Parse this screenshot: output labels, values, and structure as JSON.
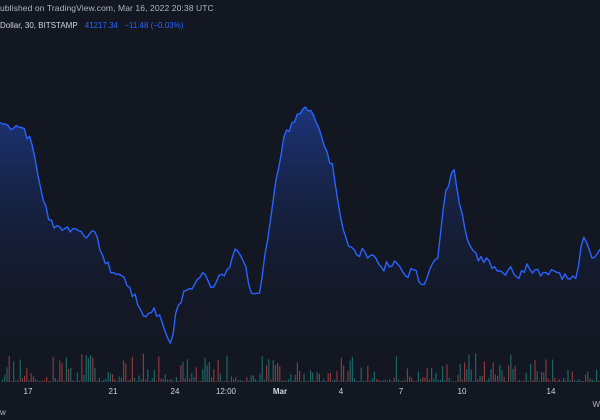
{
  "header": {
    "published_text": "ublished on TradingView.com, Mar 16, 2022 20:38 UTC"
  },
  "legend": {
    "symbol_text": "Dollar, 30, BITSTAMP",
    "last_value": "41217.34",
    "change": "−11.48 (−0.03%)",
    "value_color": "#2962ff"
  },
  "footer": {
    "bottom_left_text": "w",
    "bottom_right_text": "W"
  },
  "colors": {
    "background": "#131722",
    "line": "#2962ff",
    "area_top": "#1e3a8a",
    "volume_up": "#26a69a",
    "volume_down": "#ef5350",
    "axis_text": "#d1d4dc"
  },
  "chart_data": {
    "type": "area",
    "x_tick_labels": [
      "17",
      "21",
      "24",
      "12:00",
      "Mar",
      "4",
      "7",
      "10",
      "14"
    ],
    "bold_tick_label": "Mar",
    "series": [
      {
        "values": [
          0.78,
          0.77,
          0.77,
          0.76,
          0.7,
          0.56,
          0.45,
          0.43,
          0.42,
          0.42,
          0.41,
          0.4,
          0.39,
          0.3,
          0.27,
          0.26,
          0.22,
          0.16,
          0.12,
          0.15,
          0.1,
          0.03,
          0.16,
          0.21,
          0.23,
          0.27,
          0.22,
          0.26,
          0.28,
          0.35,
          0.31,
          0.2,
          0.2,
          0.38,
          0.58,
          0.73,
          0.78,
          0.81,
          0.82,
          0.78,
          0.7,
          0.64,
          0.46,
          0.36,
          0.33,
          0.34,
          0.33,
          0.29,
          0.29,
          0.3,
          0.26,
          0.28,
          0.23,
          0.28,
          0.32,
          0.55,
          0.62,
          0.47,
          0.36,
          0.31,
          0.32,
          0.29,
          0.27,
          0.29,
          0.25,
          0.3,
          0.28,
          0.27,
          0.28,
          0.27,
          0.25,
          0.25,
          0.39,
          0.32,
          0.35
        ]
      }
    ]
  }
}
